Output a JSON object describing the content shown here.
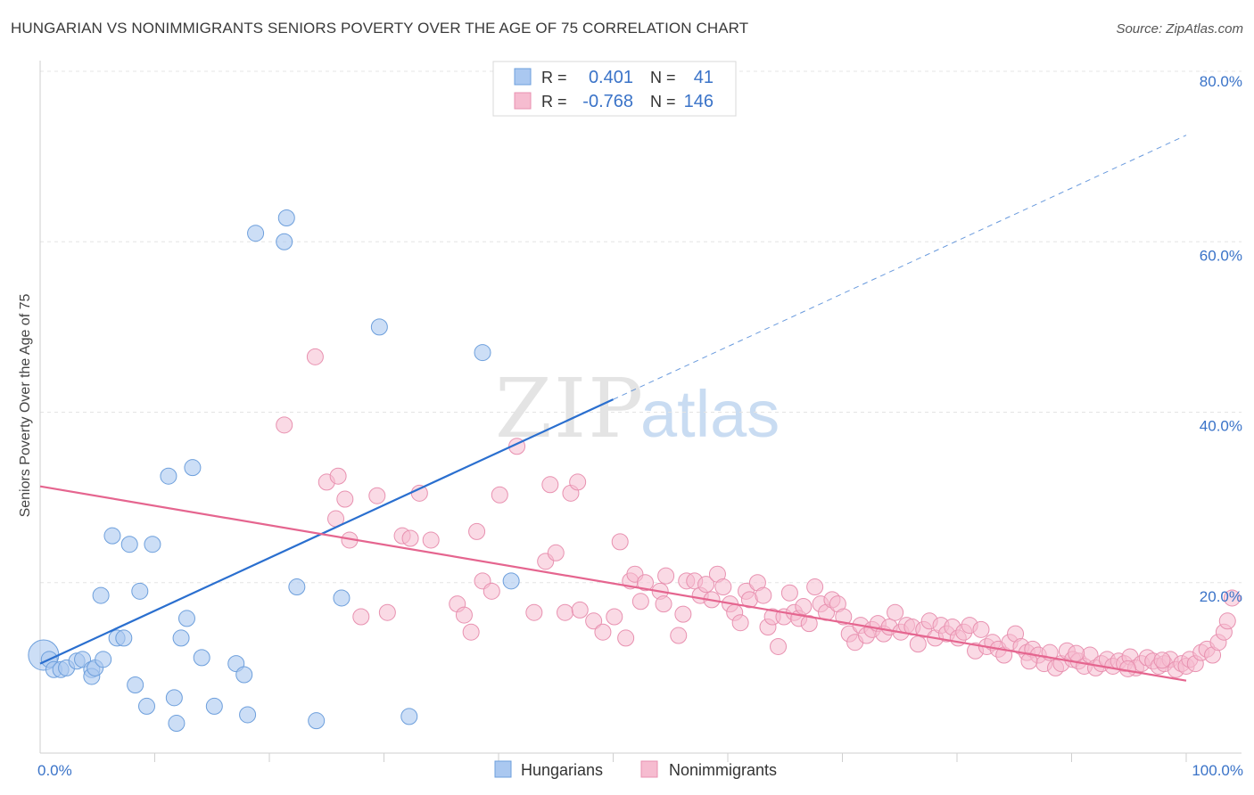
{
  "title": "HUNGARIAN VS NONIMMIGRANTS SENIORS POVERTY OVER THE AGE OF 75 CORRELATION CHART",
  "source": "Source: ZipAtlas.com",
  "watermark": {
    "zip": "ZIP",
    "atlas": "atlas"
  },
  "colors": {
    "hungarians_fill": "#aac8f0",
    "hungarians_stroke": "#6d9fdc",
    "hungarians_line": "#2a6fcf",
    "nonimmigrants_fill": "#f6bcd0",
    "nonimmigrants_stroke": "#e891b0",
    "nonimmigrants_line": "#e5658f",
    "axis_label_blue": "#3a73c8"
  },
  "legend": {
    "rows": [
      {
        "r_label": "R =",
        "r_value": "0.401",
        "n_label": "N =",
        "n_value": "41"
      },
      {
        "r_label": "R =",
        "r_value": "-0.768",
        "n_label": "N =",
        "n_value": "146"
      }
    ]
  },
  "chart_data": {
    "type": "scatter",
    "title": "HUNGARIAN VS NONIMMIGRANTS SENIORS POVERTY OVER THE AGE OF 75 CORRELATION CHART",
    "ylabel": "Seniors Poverty Over the Age of 75",
    "xlim": [
      0,
      100
    ],
    "ylim": [
      0,
      80
    ],
    "x_tick_labels": [
      "0.0%",
      "100.0%"
    ],
    "y_tick_labels": [
      "20.0%",
      "40.0%",
      "60.0%",
      "80.0%"
    ],
    "y_ticks": [
      20,
      40,
      60,
      80
    ],
    "grid": true,
    "legend_position": "bottom",
    "series": [
      {
        "name": "Hungarians",
        "r": 0.401,
        "n": 41,
        "trend": {
          "x0": 0,
          "y0": 10.5,
          "x1": 50,
          "y1": 41.5,
          "extend_to_x": 100,
          "extend_to_y": 72.5
        },
        "points": [
          [
            0.3,
            11.5,
            "big"
          ],
          [
            0.8,
            11
          ],
          [
            1.2,
            9.8
          ],
          [
            1.8,
            9.8
          ],
          [
            2.3,
            10
          ],
          [
            3.2,
            10.8
          ],
          [
            3.7,
            11
          ],
          [
            4.5,
            9.8
          ],
          [
            4.5,
            9
          ],
          [
            4.8,
            10
          ],
          [
            5.5,
            11
          ],
          [
            5.3,
            18.5
          ],
          [
            6.3,
            25.5
          ],
          [
            6.7,
            13.5
          ],
          [
            7.3,
            13.5
          ],
          [
            7.8,
            24.5
          ],
          [
            8.3,
            8
          ],
          [
            8.7,
            19
          ],
          [
            9.3,
            5.5
          ],
          [
            9.8,
            24.5
          ],
          [
            11.2,
            32.5
          ],
          [
            11.7,
            6.5
          ],
          [
            11.9,
            3.5
          ],
          [
            12.3,
            13.5
          ],
          [
            12.8,
            15.8
          ],
          [
            13.3,
            33.5
          ],
          [
            14.1,
            11.2
          ],
          [
            15.2,
            5.5
          ],
          [
            17.1,
            10.5
          ],
          [
            17.8,
            9.2
          ],
          [
            18.1,
            4.5
          ],
          [
            18.8,
            61
          ],
          [
            21.3,
            60
          ],
          [
            21.5,
            62.8
          ],
          [
            22.4,
            19.5
          ],
          [
            24.1,
            3.8
          ],
          [
            26.3,
            18.2
          ],
          [
            29.6,
            50
          ],
          [
            32.2,
            4.3
          ],
          [
            38.6,
            47
          ],
          [
            41.1,
            20.2
          ]
        ]
      },
      {
        "name": "Nonimmigrants",
        "r": -0.768,
        "n": 146,
        "trend": {
          "x0": 0,
          "y0": 31.3,
          "x1": 100,
          "y1": 8.5
        },
        "points": [
          [
            24,
            46.5
          ],
          [
            21.3,
            38.5
          ],
          [
            25,
            31.8
          ],
          [
            26,
            32.5
          ],
          [
            26.6,
            29.8
          ],
          [
            25.8,
            27.5
          ],
          [
            27,
            25
          ],
          [
            28,
            16
          ],
          [
            29.4,
            30.2
          ],
          [
            30.3,
            16.5
          ],
          [
            31.6,
            25.5
          ],
          [
            32.3,
            25.2
          ],
          [
            33.1,
            30.5
          ],
          [
            34.1,
            25
          ],
          [
            36.4,
            17.5
          ],
          [
            37,
            16.2
          ],
          [
            37.6,
            14.2
          ],
          [
            38.1,
            26
          ],
          [
            38.6,
            20.2
          ],
          [
            39.4,
            19
          ],
          [
            40.1,
            30.3
          ],
          [
            41.6,
            36
          ],
          [
            43.1,
            16.5
          ],
          [
            44.1,
            22.5
          ],
          [
            44.5,
            31.5
          ],
          [
            45,
            23.5
          ],
          [
            45.8,
            16.5
          ],
          [
            46.3,
            30.5
          ],
          [
            46.9,
            31.8
          ],
          [
            47.1,
            16.8
          ],
          [
            48.3,
            15.5
          ],
          [
            49.1,
            14.2
          ],
          [
            50.1,
            16
          ],
          [
            50.6,
            24.8
          ],
          [
            51.1,
            13.5
          ],
          [
            51.5,
            20.2
          ],
          [
            51.9,
            21
          ],
          [
            52.4,
            17.8
          ],
          [
            52.8,
            20
          ],
          [
            54.1,
            19
          ],
          [
            54.4,
            17.5
          ],
          [
            54.6,
            20.8
          ],
          [
            55.7,
            13.8
          ],
          [
            56.1,
            16.3
          ],
          [
            56.4,
            20.2
          ],
          [
            57.1,
            20.2
          ],
          [
            57.6,
            18.5
          ],
          [
            58.1,
            19.8
          ],
          [
            58.6,
            18
          ],
          [
            59.1,
            21
          ],
          [
            59.6,
            19.5
          ],
          [
            60.2,
            17.5
          ],
          [
            60.6,
            16.5
          ],
          [
            61.1,
            15.3
          ],
          [
            61.6,
            19
          ],
          [
            61.9,
            18
          ],
          [
            62.6,
            20
          ],
          [
            63.1,
            18.5
          ],
          [
            63.5,
            14.8
          ],
          [
            63.9,
            16
          ],
          [
            64.4,
            12.5
          ],
          [
            64.9,
            16
          ],
          [
            65.4,
            18.8
          ],
          [
            65.8,
            16.5
          ],
          [
            66.2,
            15.8
          ],
          [
            66.6,
            17.2
          ],
          [
            67.1,
            15.2
          ],
          [
            67.6,
            19.5
          ],
          [
            68.1,
            17.5
          ],
          [
            68.6,
            16.5
          ],
          [
            69.1,
            18
          ],
          [
            69.6,
            17.5
          ],
          [
            70.1,
            16
          ],
          [
            70.6,
            14
          ],
          [
            71.1,
            13
          ],
          [
            71.6,
            15
          ],
          [
            72.1,
            13.8
          ],
          [
            72.6,
            14.5
          ],
          [
            73.1,
            15.2
          ],
          [
            73.6,
            14
          ],
          [
            74.1,
            14.8
          ],
          [
            74.6,
            16.5
          ],
          [
            75.1,
            14.2
          ],
          [
            75.6,
            15
          ],
          [
            76.1,
            14.8
          ],
          [
            76.6,
            12.8
          ],
          [
            77.1,
            14.5
          ],
          [
            77.6,
            15.5
          ],
          [
            78.1,
            13.5
          ],
          [
            78.6,
            15
          ],
          [
            79.1,
            14
          ],
          [
            79.6,
            14.8
          ],
          [
            80.1,
            13.5
          ],
          [
            80.6,
            14.2
          ],
          [
            81.1,
            15
          ],
          [
            81.6,
            12
          ],
          [
            82.1,
            14.5
          ],
          [
            82.6,
            12.5
          ],
          [
            83.1,
            13
          ],
          [
            83.6,
            12.2
          ],
          [
            84.1,
            11.5
          ],
          [
            84.6,
            13
          ],
          [
            85.1,
            14
          ],
          [
            85.6,
            12.5
          ],
          [
            86.1,
            11.8
          ],
          [
            86.6,
            12.2
          ],
          [
            87.1,
            11.5
          ],
          [
            87.6,
            10.5
          ],
          [
            88.1,
            11.8
          ],
          [
            88.6,
            10
          ],
          [
            89.1,
            10.5
          ],
          [
            89.6,
            12
          ],
          [
            90.1,
            11
          ],
          [
            90.6,
            10.8
          ],
          [
            91.1,
            10.2
          ],
          [
            91.6,
            11.5
          ],
          [
            92.1,
            10
          ],
          [
            92.6,
            10.5
          ],
          [
            93.1,
            11
          ],
          [
            93.6,
            10.2
          ],
          [
            94.1,
            10.8
          ],
          [
            94.6,
            10.5
          ],
          [
            95.1,
            11.3
          ],
          [
            95.6,
            10
          ],
          [
            96.1,
            10.5
          ],
          [
            96.6,
            11.2
          ],
          [
            97.1,
            10.8
          ],
          [
            97.6,
            10.2
          ],
          [
            98.1,
            10.5
          ],
          [
            98.6,
            11
          ],
          [
            99.1,
            9.8
          ],
          [
            99.6,
            10.5
          ],
          [
            100,
            10.2
          ],
          [
            100.3,
            11
          ],
          [
            100.8,
            10.5
          ],
          [
            101.3,
            11.8
          ],
          [
            101.8,
            12.2
          ],
          [
            102.3,
            11.5
          ],
          [
            102.8,
            13
          ],
          [
            103.3,
            14.2
          ],
          [
            103.6,
            15.5
          ],
          [
            104,
            18.2
          ],
          [
            86.3,
            10.8
          ],
          [
            90.4,
            11.7
          ],
          [
            94.9,
            9.9
          ],
          [
            97.9,
            10.9
          ]
        ]
      }
    ]
  }
}
